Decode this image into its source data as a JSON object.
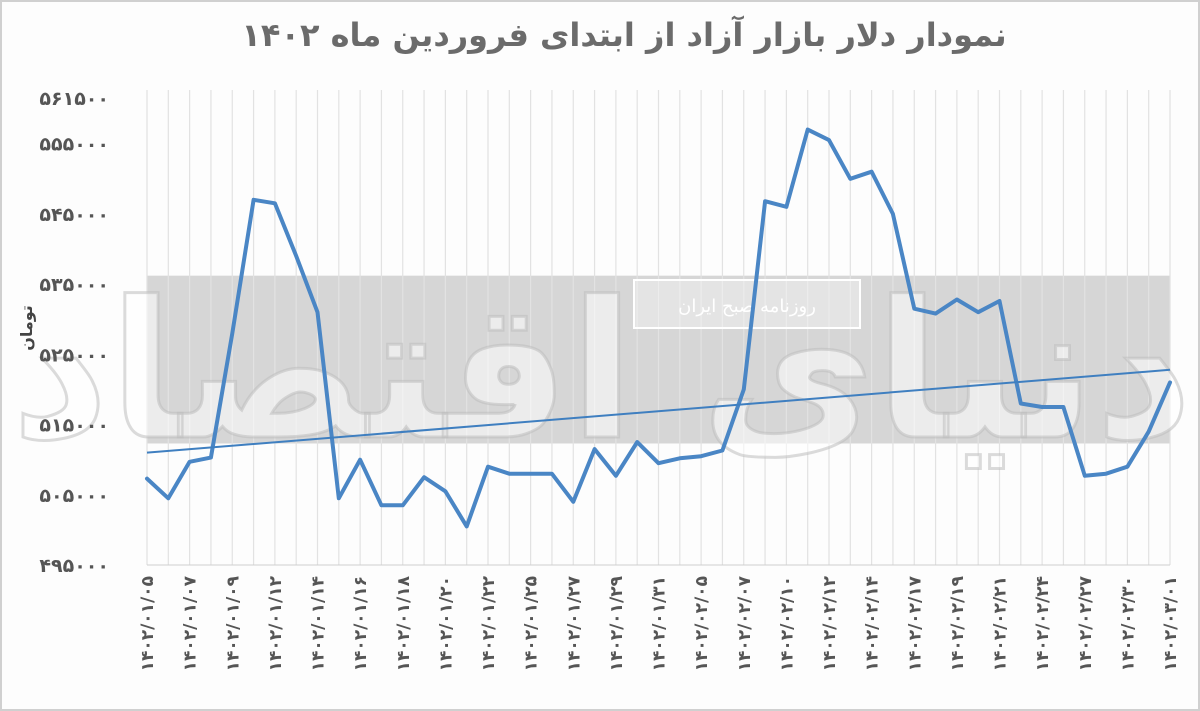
{
  "chart_data": {
    "type": "line",
    "title": "نمودار دلار بازار آزاد از ابتدای فروردین ماه ۱۴۰۲",
    "ylabel": "تومان",
    "xlabel": "",
    "ylim": [
      495000,
      561500
    ],
    "y_ticks": [
      {
        "value": 495000,
        "label": "۴۹۵۰۰۰"
      },
      {
        "value": 505000,
        "label": "۵۰۵۰۰۰"
      },
      {
        "value": 515000,
        "label": "۵۱۵۰۰۰"
      },
      {
        "value": 525000,
        "label": "۵۲۵۰۰۰"
      },
      {
        "value": 535000,
        "label": "۵۳۵۰۰۰"
      },
      {
        "value": 545000,
        "label": "۵۴۵۰۰۰"
      },
      {
        "value": 555000,
        "label": "۵۵۵۰۰۰"
      },
      {
        "value": 561500,
        "label": "۵۶۱۵۰۰"
      }
    ],
    "x_tick_labels": [
      "۱۴۰۲/۰۱/۰۵",
      "۱۴۰۲/۰۱/۰۷",
      "۱۴۰۲/۰۱/۰۹",
      "۱۴۰۲/۰۱/۱۲",
      "۱۴۰۲/۰۱/۱۴",
      "۱۴۰۲/۰۱/۱۶",
      "۱۴۰۲/۰۱/۱۸",
      "۱۴۰۲/۰۱/۲۰",
      "۱۴۰۲/۰۱/۲۲",
      "۱۴۰۲/۰۱/۲۵",
      "۱۴۰۲/۰۱/۲۷",
      "۱۴۰۲/۰۱/۲۹",
      "۱۴۰۲/۰۱/۳۱",
      "۱۴۰۲/۰۲/۰۵",
      "۱۴۰۲/۰۲/۰۷",
      "۱۴۰۲/۰۲/۱۰",
      "۱۴۰۲/۰۲/۱۲",
      "۱۴۰۲/۰۲/۱۴",
      "۱۴۰۲/۰۲/۱۷",
      "۱۴۰۲/۰۲/۱۹",
      "۱۴۰۲/۰۲/۲۱",
      "۱۴۰۲/۰۲/۲۴",
      "۱۴۰۲/۰۲/۲۷",
      "۱۴۰۲/۰۲/۳۰",
      "۱۴۰۲/۰۳/۰۱"
    ],
    "series": [
      {
        "color": "#4a86c5",
        "values": [
          507300,
          504500,
          509700,
          510300,
          528000,
          547000,
          546500,
          539000,
          531000,
          504500,
          510000,
          503500,
          503500,
          507500,
          505500,
          500500,
          509000,
          508000,
          508000,
          508000,
          504000,
          511500,
          507700,
          512500,
          509500,
          510200,
          510500,
          511300,
          520000,
          546800,
          546000,
          557000,
          555500,
          550000,
          551000,
          545000,
          531500,
          530800,
          532800,
          531000,
          532600,
          518000,
          517500,
          517500,
          507700,
          508000,
          509000,
          514000,
          521000
        ],
        "trend": {
          "start": 511000,
          "end": 522800
        }
      }
    ],
    "grid": {
      "vertical": true,
      "horizontal": false
    },
    "legend": "none",
    "watermark": {
      "logo_text": "دنیای اقتصاد",
      "stamp_text": "روزنامه صبح ایران"
    }
  }
}
